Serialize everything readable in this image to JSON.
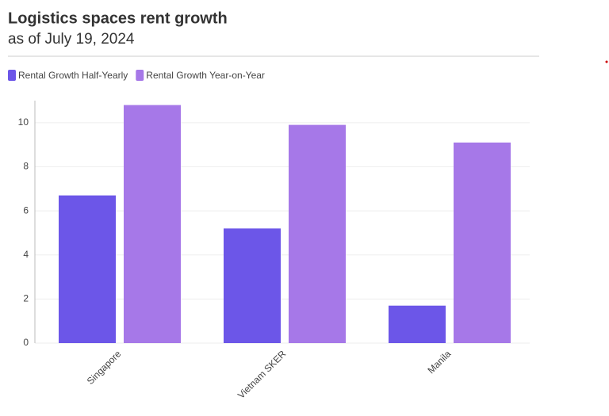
{
  "chart_data": {
    "type": "bar",
    "title": "Logistics spaces rent growth",
    "subtitle": "as of July 19, 2024",
    "categories": [
      "Singapore",
      "Vietnam SKER",
      "Manila"
    ],
    "series": [
      {
        "name": "Rental Growth Half-Yearly",
        "color": "#6c56e8",
        "values": [
          6.7,
          5.2,
          1.7
        ]
      },
      {
        "name": "Rental Growth Year-on-Year",
        "color": "#a678e8",
        "values": [
          10.8,
          9.9,
          9.1
        ]
      }
    ],
    "ylim": [
      0,
      11
    ],
    "yticks": [
      0,
      2,
      4,
      6,
      8,
      10
    ],
    "grid": true
  }
}
